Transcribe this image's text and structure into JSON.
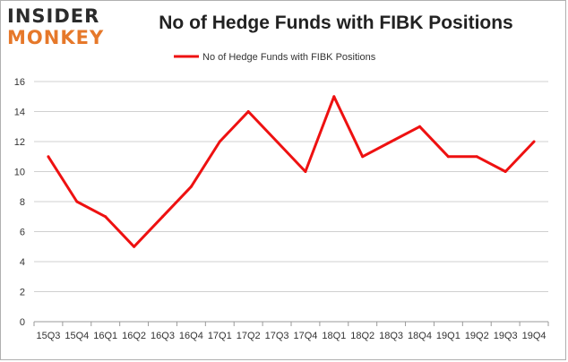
{
  "brand": {
    "logo_line1": "INSIDER",
    "logo_line2": "MONKEY"
  },
  "chart_data": {
    "type": "line",
    "title": "No of Hedge Funds with FIBK Positions",
    "categories": [
      "15Q3",
      "15Q4",
      "16Q1",
      "16Q2",
      "16Q3",
      "16Q4",
      "17Q1",
      "17Q2",
      "17Q3",
      "17Q4",
      "18Q1",
      "18Q2",
      "18Q3",
      "18Q4",
      "19Q1",
      "19Q2",
      "19Q3",
      "19Q4"
    ],
    "series": [
      {
        "name": "No of Hedge Funds with FIBK Positions",
        "values": [
          11,
          8,
          7,
          5,
          7,
          9,
          12,
          14,
          12,
          10,
          15,
          11,
          12,
          13,
          11,
          11,
          10,
          12
        ],
        "color": "#ee1111"
      }
    ],
    "yticks": [
      0,
      2,
      4,
      6,
      8,
      10,
      12,
      14,
      16
    ],
    "ylim": [
      0,
      16
    ],
    "grid": true,
    "legend_position": "top-center"
  }
}
